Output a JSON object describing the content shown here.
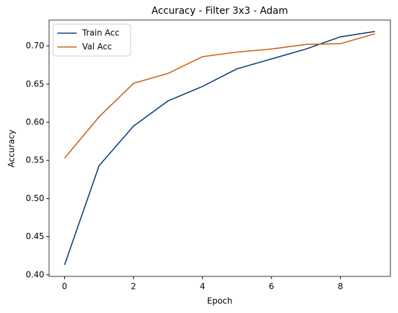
{
  "chart_data": {
    "type": "line",
    "title": "Accuracy - Filter 3x3 - Adam",
    "x_label": "Epoch",
    "y_label": "Accuracy",
    "x": [
      0,
      1,
      2,
      3,
      4,
      5,
      6,
      7,
      8,
      9
    ],
    "series": [
      {
        "name": "Train Acc",
        "color": "#0b3c78",
        "values": [
          0.413,
          0.543,
          0.595,
          0.628,
          0.647,
          0.67,
          0.683,
          0.696,
          0.712,
          0.719
        ]
      },
      {
        "name": "Val Acc",
        "color": "#cc6010",
        "values": [
          0.553,
          0.607,
          0.651,
          0.664,
          0.686,
          0.692,
          0.696,
          0.702,
          0.703,
          0.716
        ]
      }
    ],
    "xlim": [
      -0.45,
      9.45
    ],
    "xticks": [
      0,
      2,
      4,
      6,
      8
    ],
    "ylim": [
      0.398,
      0.734
    ],
    "yticks": [
      {
        "value": 0.4,
        "label": "0.40"
      },
      {
        "value": 0.45,
        "label": "0.45"
      },
      {
        "value": 0.5,
        "label": "0.50"
      },
      {
        "value": 0.55,
        "label": "0.55"
      },
      {
        "value": 0.6,
        "label": "0.60"
      },
      {
        "value": 0.65,
        "label": "0.65"
      },
      {
        "value": 0.7,
        "label": "0.70"
      }
    ],
    "grid": false,
    "legend": "upper-left"
  }
}
